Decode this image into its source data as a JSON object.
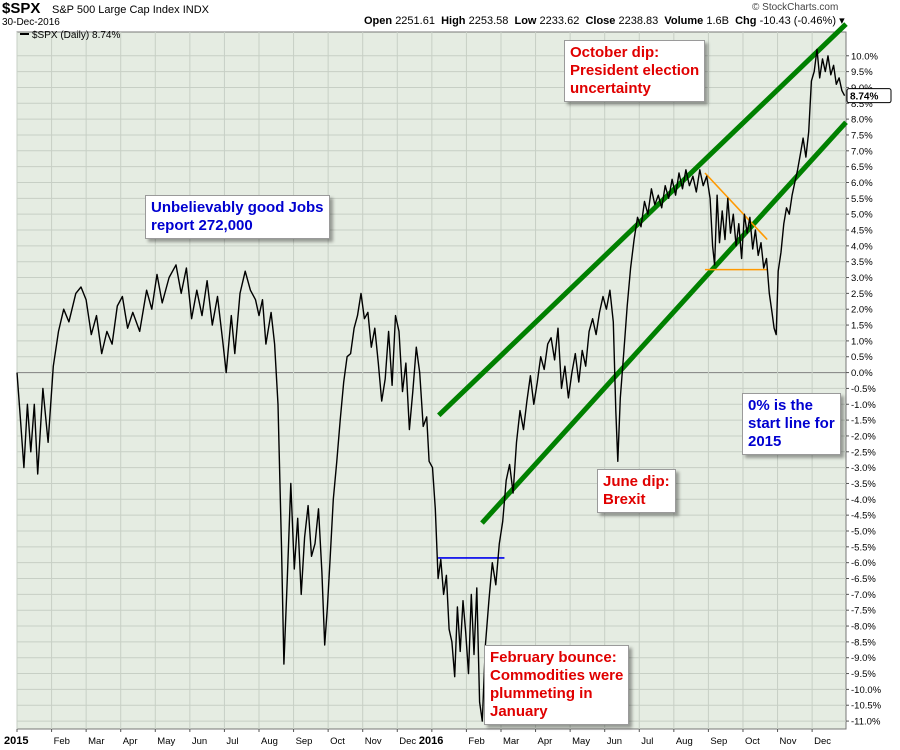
{
  "header": {
    "ticker": "$SPX",
    "name": "S&P 500 Large Cap Index",
    "exchange": "INDX",
    "date": "30-Dec-2016",
    "watermark": "© StockCharts.com",
    "open_label": "Open",
    "open": "2251.61",
    "high_label": "High",
    "high": "2253.58",
    "low_label": "Low",
    "low": "2233.62",
    "close_label": "Close",
    "close": "2238.83",
    "volume_label": "Volume",
    "volume": "1.6B",
    "chg_label": "Chg",
    "chg": "-10.43 (-0.46%)"
  },
  "legend": {
    "label": "$SPX (Daily) 8.74%"
  },
  "last_value_tag": "8.74%",
  "annotations": {
    "jobs": [
      "Unbelievably good Jobs",
      "report 272,000"
    ],
    "october": [
      "October dip:",
      "President election",
      "uncertainty"
    ],
    "zero": [
      "0% is the",
      "start line for",
      "2015"
    ],
    "june": [
      "June dip:",
      "Brexit"
    ],
    "february": [
      "February bounce:",
      "Commodities were",
      "plummeting in",
      "January"
    ]
  },
  "colors": {
    "plot_bg": "#e5ece2",
    "grid": "#c7cfc5",
    "price": "#000000",
    "channel": "#008000",
    "orange": "#ff9900",
    "blue_line": "#0000ee",
    "annotation_red": "#e00000",
    "annotation_blue": "#0000d0"
  },
  "chart_data": {
    "type": "line",
    "title": "$SPX S&P 500 Large Cap Index",
    "series_name": "$SPX (Daily) 8.74%",
    "y_unit": "% change from start of 2015",
    "ylim": [
      -11.25,
      10.75
    ],
    "y_ticks": [
      10,
      9.5,
      9,
      8.5,
      8,
      7.5,
      7,
      6.5,
      6,
      5.5,
      5,
      4.5,
      4,
      3.5,
      3,
      2.5,
      2,
      1.5,
      1,
      0.5,
      0,
      -0.5,
      -1,
      -1.5,
      -2,
      -2.5,
      -3,
      -3.5,
      -4,
      -4.5,
      -5,
      -5.5,
      -6,
      -6.5,
      -7,
      -7.5,
      -8,
      -8.5,
      -9,
      -9.5,
      -10,
      -10.5,
      -11
    ],
    "x_ticks": [
      {
        "label": "2015",
        "t": 0.0
      },
      {
        "label": "Feb",
        "t": 1.0
      },
      {
        "label": "Mar",
        "t": 2.0
      },
      {
        "label": "Apr",
        "t": 3.0
      },
      {
        "label": "May",
        "t": 4.0
      },
      {
        "label": "Jun",
        "t": 5.0
      },
      {
        "label": "Jul",
        "t": 6.0
      },
      {
        "label": "Aug",
        "t": 7.0
      },
      {
        "label": "Sep",
        "t": 8.0
      },
      {
        "label": "Oct",
        "t": 9.0
      },
      {
        "label": "Nov",
        "t": 10.0
      },
      {
        "label": "Dec",
        "t": 11.0
      },
      {
        "label": "2016",
        "t": 12.0
      },
      {
        "label": "Feb",
        "t": 13.0
      },
      {
        "label": "Mar",
        "t": 14.0
      },
      {
        "label": "Apr",
        "t": 15.0
      },
      {
        "label": "May",
        "t": 16.0
      },
      {
        "label": "Jun",
        "t": 17.0
      },
      {
        "label": "Jul",
        "t": 18.0
      },
      {
        "label": "Aug",
        "t": 19.0
      },
      {
        "label": "Sep",
        "t": 20.0
      },
      {
        "label": "Oct",
        "t": 21.0
      },
      {
        "label": "Nov",
        "t": 22.0
      },
      {
        "label": "Dec",
        "t": 23.0
      }
    ],
    "x_end": 23.98,
    "points": [
      [
        0.0,
        0.0
      ],
      [
        0.1,
        -1.5
      ],
      [
        0.2,
        -3.0
      ],
      [
        0.3,
        -1.0
      ],
      [
        0.4,
        -2.5
      ],
      [
        0.5,
        -1.0
      ],
      [
        0.6,
        -3.2
      ],
      [
        0.75,
        -0.5
      ],
      [
        0.9,
        -2.2
      ],
      [
        1.05,
        0.2
      ],
      [
        1.2,
        1.3
      ],
      [
        1.35,
        2.0
      ],
      [
        1.5,
        1.6
      ],
      [
        1.7,
        2.5
      ],
      [
        1.85,
        2.7
      ],
      [
        2.0,
        2.3
      ],
      [
        2.15,
        1.2
      ],
      [
        2.3,
        1.8
      ],
      [
        2.45,
        0.6
      ],
      [
        2.6,
        1.3
      ],
      [
        2.75,
        0.9
      ],
      [
        2.9,
        2.1
      ],
      [
        3.05,
        2.4
      ],
      [
        3.2,
        1.4
      ],
      [
        3.35,
        1.9
      ],
      [
        3.55,
        1.3
      ],
      [
        3.75,
        2.6
      ],
      [
        3.9,
        2.0
      ],
      [
        4.05,
        3.1
      ],
      [
        4.2,
        2.2
      ],
      [
        4.4,
        3.0
      ],
      [
        4.6,
        3.4
      ],
      [
        4.75,
        2.5
      ],
      [
        4.9,
        3.3
      ],
      [
        5.05,
        1.7
      ],
      [
        5.2,
        2.6
      ],
      [
        5.35,
        1.8
      ],
      [
        5.5,
        2.9
      ],
      [
        5.65,
        1.5
      ],
      [
        5.8,
        2.4
      ],
      [
        5.95,
        1.0
      ],
      [
        6.05,
        0.0
      ],
      [
        6.2,
        1.8
      ],
      [
        6.3,
        0.6
      ],
      [
        6.45,
        2.5
      ],
      [
        6.6,
        3.2
      ],
      [
        6.75,
        2.6
      ],
      [
        6.9,
        2.3
      ],
      [
        7.0,
        1.8
      ],
      [
        7.1,
        2.3
      ],
      [
        7.2,
        0.9
      ],
      [
        7.35,
        1.9
      ],
      [
        7.45,
        0.9
      ],
      [
        7.55,
        -1.0
      ],
      [
        7.65,
        -5.5
      ],
      [
        7.72,
        -9.2
      ],
      [
        7.82,
        -6.5
      ],
      [
        7.92,
        -3.5
      ],
      [
        8.02,
        -6.2
      ],
      [
        8.12,
        -4.6
      ],
      [
        8.22,
        -7.0
      ],
      [
        8.32,
        -5.2
      ],
      [
        8.42,
        -4.2
      ],
      [
        8.52,
        -5.8
      ],
      [
        8.62,
        -5.4
      ],
      [
        8.72,
        -4.3
      ],
      [
        8.82,
        -6.3
      ],
      [
        8.9,
        -8.6
      ],
      [
        8.98,
        -7.4
      ],
      [
        9.05,
        -6.0
      ],
      [
        9.15,
        -4.0
      ],
      [
        9.25,
        -2.8
      ],
      [
        9.35,
        -1.5
      ],
      [
        9.45,
        -0.3
      ],
      [
        9.55,
        0.5
      ],
      [
        9.65,
        0.6
      ],
      [
        9.75,
        1.4
      ],
      [
        9.85,
        1.8
      ],
      [
        9.95,
        2.5
      ],
      [
        10.05,
        1.7
      ],
      [
        10.15,
        1.9
      ],
      [
        10.25,
        0.8
      ],
      [
        10.35,
        1.4
      ],
      [
        10.45,
        0.3
      ],
      [
        10.55,
        -0.9
      ],
      [
        10.65,
        -0.2
      ],
      [
        10.75,
        1.3
      ],
      [
        10.85,
        -0.4
      ],
      [
        10.95,
        1.8
      ],
      [
        11.05,
        1.3
      ],
      [
        11.15,
        -0.6
      ],
      [
        11.25,
        0.3
      ],
      [
        11.35,
        -1.8
      ],
      [
        11.45,
        -0.6
      ],
      [
        11.55,
        0.8
      ],
      [
        11.65,
        0.0
      ],
      [
        11.75,
        -1.7
      ],
      [
        11.85,
        -1.4
      ],
      [
        11.92,
        -2.8
      ],
      [
        12.02,
        -3.0
      ],
      [
        12.1,
        -4.3
      ],
      [
        12.18,
        -6.5
      ],
      [
        12.26,
        -5.9
      ],
      [
        12.34,
        -7.0
      ],
      [
        12.42,
        -6.4
      ],
      [
        12.5,
        -8.1
      ],
      [
        12.58,
        -8.5
      ],
      [
        12.66,
        -9.6
      ],
      [
        12.74,
        -7.4
      ],
      [
        12.82,
        -8.8
      ],
      [
        12.9,
        -7.2
      ],
      [
        12.98,
        -8.2
      ],
      [
        13.06,
        -9.5
      ],
      [
        13.14,
        -7.0
      ],
      [
        13.22,
        -8.9
      ],
      [
        13.3,
        -6.8
      ],
      [
        13.38,
        -10.4
      ],
      [
        13.46,
        -11.0
      ],
      [
        13.55,
        -8.6
      ],
      [
        13.65,
        -7.2
      ],
      [
        13.75,
        -6.0
      ],
      [
        13.85,
        -6.7
      ],
      [
        13.95,
        -5.4
      ],
      [
        14.05,
        -4.7
      ],
      [
        14.15,
        -3.4
      ],
      [
        14.25,
        -2.9
      ],
      [
        14.35,
        -3.8
      ],
      [
        14.45,
        -2.2
      ],
      [
        14.55,
        -1.2
      ],
      [
        14.65,
        -1.8
      ],
      [
        14.75,
        -0.9
      ],
      [
        14.85,
        -0.1
      ],
      [
        14.95,
        -1.0
      ],
      [
        15.05,
        -0.3
      ],
      [
        15.15,
        0.5
      ],
      [
        15.25,
        0.1
      ],
      [
        15.35,
        0.9
      ],
      [
        15.45,
        1.1
      ],
      [
        15.55,
        0.4
      ],
      [
        15.65,
        1.4
      ],
      [
        15.75,
        -0.5
      ],
      [
        15.85,
        0.2
      ],
      [
        15.95,
        -0.8
      ],
      [
        16.05,
        0.0
      ],
      [
        16.15,
        0.6
      ],
      [
        16.25,
        -0.3
      ],
      [
        16.35,
        0.7
      ],
      [
        16.45,
        0.2
      ],
      [
        16.55,
        1.3
      ],
      [
        16.65,
        1.7
      ],
      [
        16.75,
        1.2
      ],
      [
        16.85,
        1.9
      ],
      [
        16.95,
        2.4
      ],
      [
        17.05,
        2.0
      ],
      [
        17.15,
        2.6
      ],
      [
        17.25,
        1.6
      ],
      [
        17.32,
        -1.2
      ],
      [
        17.38,
        -2.8
      ],
      [
        17.45,
        -0.8
      ],
      [
        17.55,
        0.6
      ],
      [
        17.65,
        2.1
      ],
      [
        17.75,
        3.3
      ],
      [
        17.85,
        4.2
      ],
      [
        17.95,
        4.9
      ],
      [
        18.05,
        4.6
      ],
      [
        18.15,
        5.4
      ],
      [
        18.25,
        5.0
      ],
      [
        18.35,
        5.8
      ],
      [
        18.45,
        5.3
      ],
      [
        18.55,
        5.6
      ],
      [
        18.65,
        5.2
      ],
      [
        18.75,
        5.9
      ],
      [
        18.85,
        5.5
      ],
      [
        18.95,
        6.1
      ],
      [
        19.05,
        5.6
      ],
      [
        19.15,
        6.3
      ],
      [
        19.25,
        5.8
      ],
      [
        19.35,
        6.4
      ],
      [
        19.45,
        5.9
      ],
      [
        19.55,
        6.2
      ],
      [
        19.65,
        5.7
      ],
      [
        19.75,
        6.4
      ],
      [
        19.85,
        5.9
      ],
      [
        19.95,
        6.2
      ],
      [
        20.05,
        5.5
      ],
      [
        20.12,
        4.0
      ],
      [
        20.18,
        3.4
      ],
      [
        20.25,
        5.6
      ],
      [
        20.32,
        4.1
      ],
      [
        20.4,
        5.1
      ],
      [
        20.48,
        4.2
      ],
      [
        20.56,
        5.5
      ],
      [
        20.64,
        4.4
      ],
      [
        20.72,
        5.0
      ],
      [
        20.8,
        4.0
      ],
      [
        20.88,
        4.7
      ],
      [
        20.96,
        3.6
      ],
      [
        21.04,
        5.0
      ],
      [
        21.12,
        4.4
      ],
      [
        21.2,
        4.9
      ],
      [
        21.28,
        3.9
      ],
      [
        21.36,
        4.5
      ],
      [
        21.44,
        3.7
      ],
      [
        21.52,
        4.1
      ],
      [
        21.6,
        3.3
      ],
      [
        21.68,
        3.6
      ],
      [
        21.76,
        2.5
      ],
      [
        21.84,
        1.9
      ],
      [
        21.9,
        1.4
      ],
      [
        21.96,
        1.2
      ],
      [
        22.02,
        3.2
      ],
      [
        22.1,
        3.8
      ],
      [
        22.18,
        4.7
      ],
      [
        22.26,
        5.2
      ],
      [
        22.34,
        5.0
      ],
      [
        22.42,
        5.6
      ],
      [
        22.5,
        6.0
      ],
      [
        22.58,
        6.4
      ],
      [
        22.66,
        6.9
      ],
      [
        22.74,
        7.4
      ],
      [
        22.82,
        6.8
      ],
      [
        22.9,
        7.6
      ],
      [
        22.98,
        9.2
      ],
      [
        23.06,
        9.5
      ],
      [
        23.14,
        10.2
      ],
      [
        23.22,
        9.3
      ],
      [
        23.3,
        9.9
      ],
      [
        23.38,
        9.5
      ],
      [
        23.46,
        10.0
      ],
      [
        23.54,
        9.4
      ],
      [
        23.62,
        9.7
      ],
      [
        23.7,
        9.1
      ],
      [
        23.78,
        9.3
      ],
      [
        23.86,
        8.9
      ],
      [
        23.94,
        8.74
      ]
    ],
    "overlays": {
      "channel_upper": [
        [
          12.2,
          -1.35
        ],
        [
          23.98,
          11.0
        ]
      ],
      "channel_lower": [
        [
          13.45,
          -4.75
        ],
        [
          23.98,
          7.9
        ]
      ],
      "feb_level": [
        [
          12.18,
          -5.85
        ],
        [
          14.1,
          -5.85
        ]
      ],
      "october_downtrend": [
        [
          19.9,
          6.3
        ],
        [
          21.7,
          4.2
        ]
      ],
      "october_support": [
        [
          19.9,
          3.25
        ],
        [
          21.7,
          3.25
        ]
      ],
      "zero_line": 0
    }
  }
}
